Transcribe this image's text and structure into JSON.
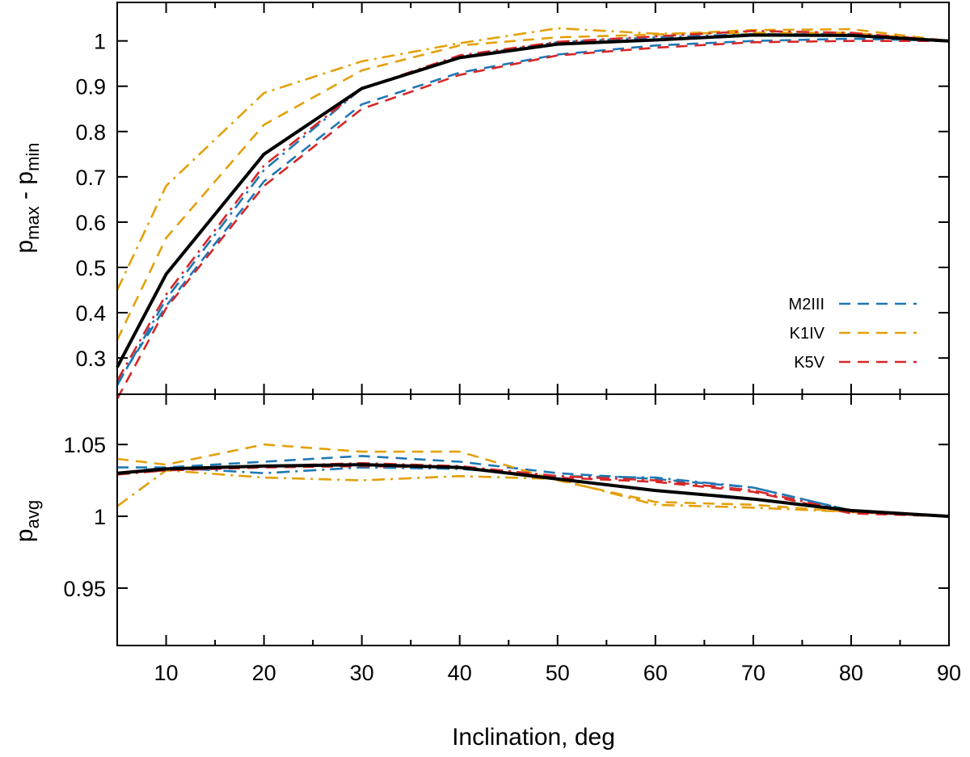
{
  "colors": {
    "M2III": "#1f77b4",
    "K1IV": "#e3a00b",
    "K5V": "#d62728",
    "reference": "#000000"
  },
  "chart_data": [
    {
      "type": "line",
      "panel": "top",
      "ylabel": "p_max - p_min",
      "ylabel_main": "p",
      "ylabel_sub_a": "max",
      "ylabel_mid": " - p",
      "ylabel_sub_b": "min",
      "xlim": [
        5,
        90
      ],
      "ylim": [
        0.22,
        1.085
      ],
      "yticks": [
        0.3,
        0.4,
        0.5,
        0.6,
        0.7,
        0.8,
        0.9,
        1
      ],
      "ytick_labels": [
        "0.3",
        "0.4",
        "0.5",
        "0.6",
        "0.7",
        "0.8",
        "0.9",
        "1"
      ],
      "legend": {
        "position": "right",
        "entries": [
          {
            "label": "M2III",
            "color": "#1f77b4",
            "dash": "dashed"
          },
          {
            "label": "K1IV",
            "color": "#e3a00b",
            "dash": "dashed"
          },
          {
            "label": "K5V",
            "color": "#d62728",
            "dash": "dashed"
          }
        ]
      },
      "series": [
        {
          "name": "M2III dashed",
          "color": "#1f77b4",
          "dash": "dashed",
          "x": [
            5,
            10,
            20,
            30,
            40,
            50,
            60,
            70,
            80,
            90
          ],
          "y": [
            0.245,
            0.415,
            0.69,
            0.86,
            0.93,
            0.97,
            0.99,
            1.0,
            1.005,
            1.0
          ]
        },
        {
          "name": "M2III dash-dot",
          "color": "#1f77b4",
          "dash": "dashdot",
          "x": [
            5,
            10,
            20,
            30,
            40,
            50,
            60,
            70,
            80,
            90
          ],
          "y": [
            0.24,
            0.43,
            0.715,
            0.895,
            0.965,
            0.997,
            1.008,
            1.015,
            1.015,
            1.0
          ]
        },
        {
          "name": "K1IV dashed",
          "color": "#e3a00b",
          "dash": "dashed",
          "x": [
            5,
            10,
            20,
            30,
            40,
            50,
            60,
            70,
            80,
            90
          ],
          "y": [
            0.34,
            0.565,
            0.815,
            0.935,
            0.99,
            1.008,
            1.014,
            1.024,
            1.026,
            1.0
          ]
        },
        {
          "name": "K1IV dash-dot",
          "color": "#e3a00b",
          "dash": "dashdot",
          "x": [
            5,
            10,
            20,
            30,
            40,
            50,
            60,
            70,
            80,
            90
          ],
          "y": [
            0.45,
            0.68,
            0.885,
            0.955,
            0.995,
            1.028,
            1.016,
            1.018,
            1.018,
            1.0
          ]
        },
        {
          "name": "K5V dashed",
          "color": "#d62728",
          "dash": "dashed",
          "x": [
            5,
            10,
            20,
            30,
            40,
            50,
            60,
            70,
            80,
            90
          ],
          "y": [
            0.21,
            0.41,
            0.68,
            0.85,
            0.925,
            0.968,
            0.985,
            0.997,
            1.0,
            1.0
          ]
        },
        {
          "name": "K5V dash-dot",
          "color": "#d62728",
          "dash": "dashdot",
          "x": [
            5,
            10,
            20,
            30,
            40,
            50,
            60,
            70,
            80,
            90
          ],
          "y": [
            0.25,
            0.44,
            0.725,
            0.895,
            0.968,
            0.998,
            1.01,
            1.022,
            1.018,
            1.0
          ]
        },
        {
          "name": "reference",
          "color": "#000000",
          "dash": "solid",
          "width": 4,
          "x": [
            5,
            10,
            20,
            30,
            40,
            50,
            60,
            70,
            80,
            90
          ],
          "y": [
            0.28,
            0.485,
            0.75,
            0.895,
            0.963,
            0.993,
            1.002,
            1.013,
            1.012,
            1.0
          ]
        }
      ]
    },
    {
      "type": "line",
      "panel": "bottom",
      "ylabel": "p_avg",
      "ylabel_main": "p",
      "ylabel_sub_a": "avg",
      "xlabel": "Inclination, deg",
      "xlim": [
        5,
        90
      ],
      "ylim": [
        0.91,
        1.085
      ],
      "xticks": [
        10,
        20,
        30,
        40,
        50,
        60,
        70,
        80,
        90
      ],
      "xtick_labels": [
        "10",
        "20",
        "30",
        "40",
        "50",
        "60",
        "70",
        "80",
        "90"
      ],
      "yticks": [
        0.95,
        1,
        1.05
      ],
      "ytick_labels": [
        "0.95",
        "1",
        "1.05"
      ],
      "series": [
        {
          "name": "M2III dashed",
          "color": "#1f77b4",
          "dash": "dashed",
          "x": [
            5,
            10,
            20,
            30,
            40,
            50,
            60,
            70,
            80,
            90
          ],
          "y": [
            1.034,
            1.034,
            1.038,
            1.042,
            1.038,
            1.03,
            1.026,
            1.02,
            1.004,
            1.0
          ]
        },
        {
          "name": "M2III dash-dot",
          "color": "#1f77b4",
          "dash": "dashdot",
          "x": [
            5,
            10,
            20,
            30,
            40,
            50,
            60,
            70,
            80,
            90
          ],
          "y": [
            1.03,
            1.034,
            1.03,
            1.034,
            1.033,
            1.028,
            1.027,
            1.02,
            1.004,
            1.0
          ]
        },
        {
          "name": "K1IV dashed",
          "color": "#e3a00b",
          "dash": "dashed",
          "x": [
            5,
            10,
            20,
            30,
            40,
            50,
            60,
            70,
            80,
            90
          ],
          "y": [
            1.04,
            1.036,
            1.05,
            1.045,
            1.045,
            1.025,
            1.01,
            1.008,
            1.003,
            1.0
          ]
        },
        {
          "name": "K1IV dash-dot",
          "color": "#e3a00b",
          "dash": "dashdot",
          "x": [
            5,
            10,
            20,
            30,
            40,
            50,
            60,
            70,
            80,
            90
          ],
          "y": [
            1.007,
            1.032,
            1.027,
            1.025,
            1.028,
            1.026,
            1.008,
            1.006,
            1.003,
            1.0
          ]
        },
        {
          "name": "K5V dashed",
          "color": "#d62728",
          "dash": "dashed",
          "x": [
            5,
            10,
            20,
            30,
            40,
            50,
            60,
            70,
            80,
            90
          ],
          "y": [
            1.03,
            1.032,
            1.034,
            1.035,
            1.034,
            1.027,
            1.024,
            1.017,
            1.002,
            1.0
          ]
        },
        {
          "name": "K5V dash-dot",
          "color": "#d62728",
          "dash": "dashdot",
          "x": [
            5,
            10,
            20,
            30,
            40,
            50,
            60,
            70,
            80,
            90
          ],
          "y": [
            1.029,
            1.032,
            1.035,
            1.037,
            1.035,
            1.028,
            1.025,
            1.018,
            1.003,
            1.0
          ]
        },
        {
          "name": "reference",
          "color": "#000000",
          "dash": "solid",
          "width": 4,
          "x": [
            5,
            10,
            20,
            30,
            40,
            50,
            60,
            70,
            80,
            90
          ],
          "y": [
            1.03,
            1.033,
            1.035,
            1.036,
            1.034,
            1.026,
            1.018,
            1.012,
            1.004,
            1.0
          ]
        }
      ]
    }
  ]
}
